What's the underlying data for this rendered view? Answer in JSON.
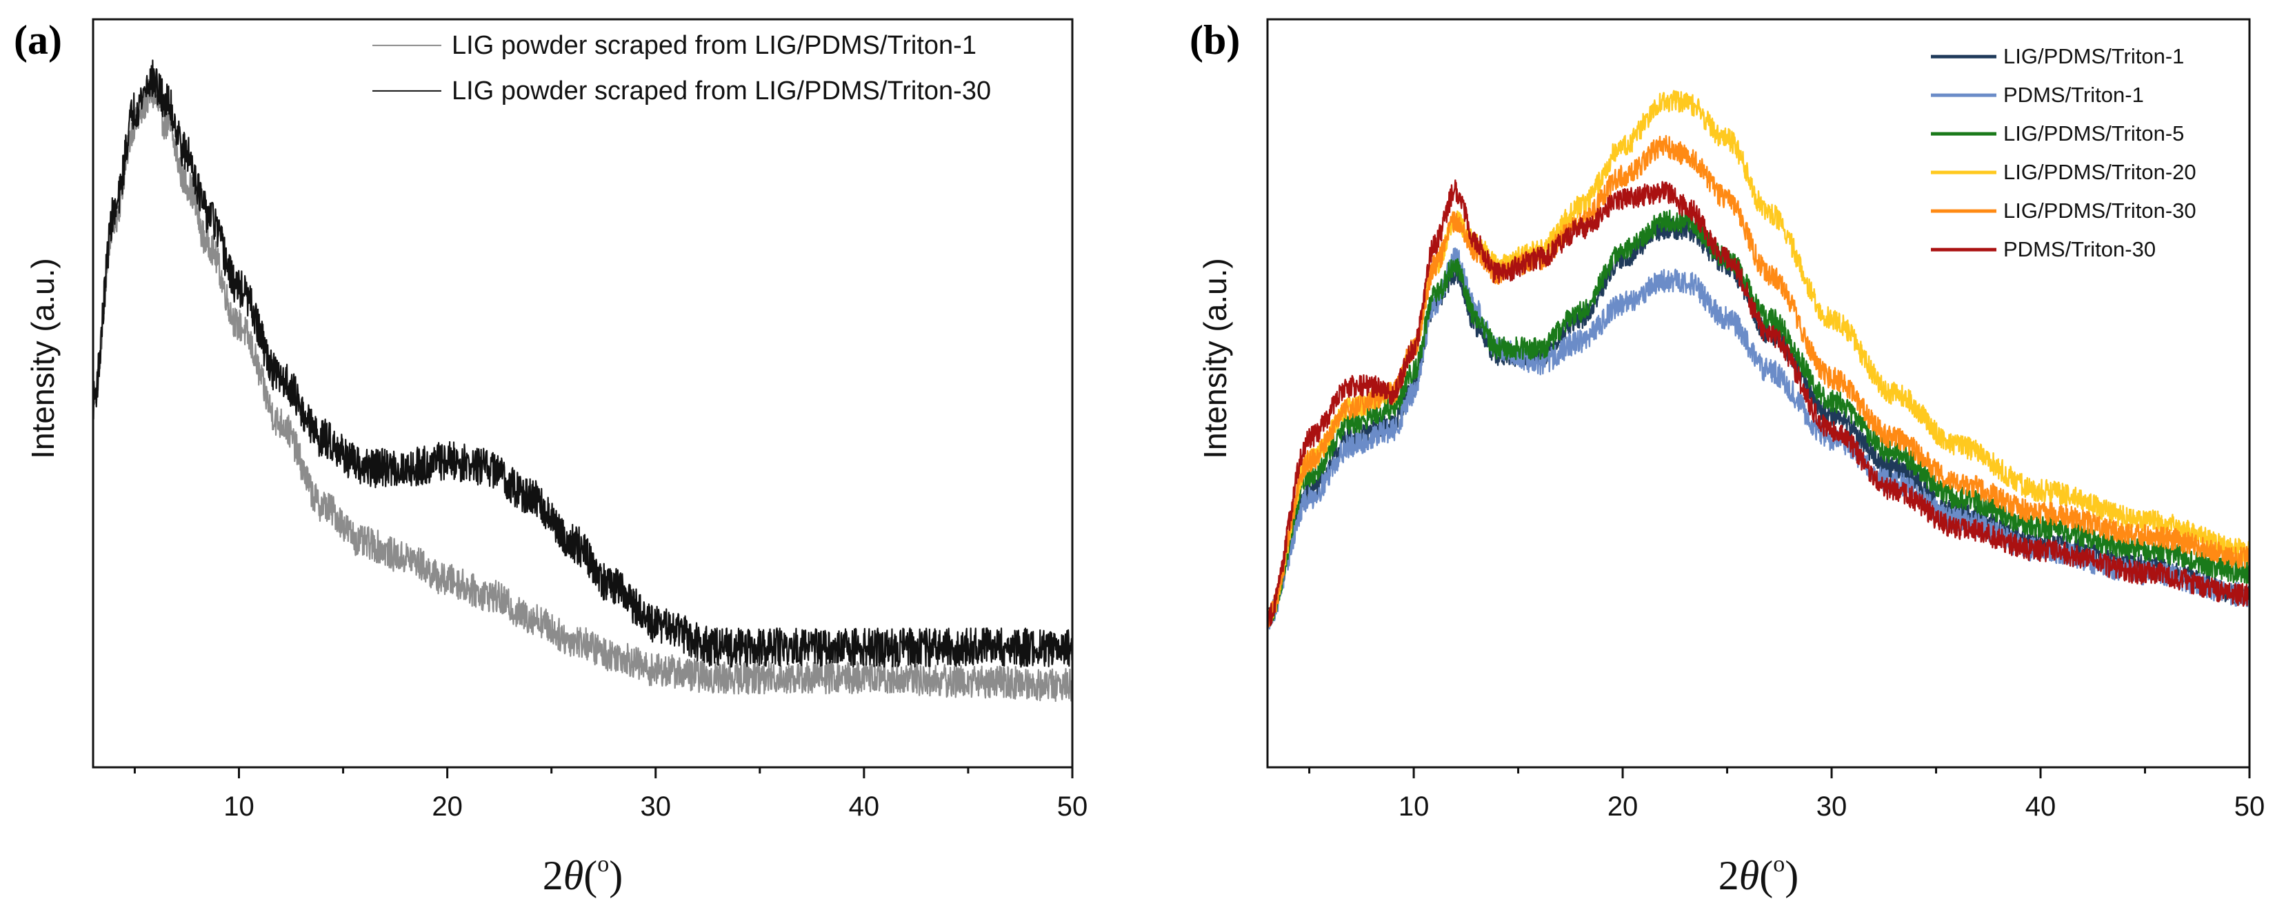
{
  "chart_data": [
    {
      "panel": "(a)",
      "type": "line",
      "xlabel": "2θ(°)",
      "xlabel_parts": {
        "prefix": "2",
        "theta": "θ",
        "open": "(",
        "degree": "o",
        "close": ")"
      },
      "ylabel": "Intensity (a.u.)",
      "xlim": [
        3,
        50
      ],
      "ylim": [
        0,
        100
      ],
      "xticks": [
        10,
        20,
        30,
        40,
        50
      ],
      "legend_position": "top-right",
      "series": [
        {
          "name": "LIG powder scraped from LIG/PDMS/Triton-1",
          "color": "#8c8c8c",
          "noise": 2.2,
          "x": [
            3,
            4,
            5,
            5.8,
            6.5,
            7.5,
            8.5,
            10,
            12,
            14,
            16,
            18,
            20,
            22,
            24,
            26,
            28,
            30,
            33,
            36,
            40,
            45,
            50
          ],
          "y": [
            49,
            73,
            86,
            90,
            86,
            78,
            70,
            59,
            46,
            35,
            30,
            28,
            25,
            23,
            20,
            17,
            15,
            13,
            12,
            12,
            12,
            11.5,
            11
          ]
        },
        {
          "name": "LIG powder scraped from LIG/PDMS/Triton-30",
          "color": "#111111",
          "noise": 2.6,
          "x": [
            3,
            4,
            5,
            5.8,
            6.5,
            7.5,
            8.5,
            10,
            12,
            14,
            16,
            18,
            20,
            22,
            24,
            26,
            28,
            30,
            33,
            36,
            40,
            45,
            50
          ],
          "y": [
            49,
            74,
            88,
            92,
            89,
            82,
            74,
            64,
            52,
            44,
            40,
            40,
            41,
            40,
            36,
            30,
            24,
            19,
            16,
            16,
            16,
            16,
            16
          ]
        }
      ]
    },
    {
      "panel": "(b)",
      "type": "line",
      "xlabel": "2θ(°)",
      "xlabel_parts": {
        "prefix": "2",
        "theta": "θ",
        "open": "(",
        "degree": "o",
        "close": ")"
      },
      "ylabel": "Intensity (a.u.)",
      "xlim": [
        3,
        50
      ],
      "ylim": [
        0,
        100
      ],
      "xticks": [
        10,
        20,
        30,
        40,
        50
      ],
      "legend_position": "top-right",
      "series": [
        {
          "name": "LIG/PDMS/Triton-1",
          "color": "#1f3a5a",
          "noise": 1.4,
          "x": [
            3,
            5,
            7,
            9,
            10,
            11,
            12,
            13,
            14,
            16,
            18,
            20,
            22,
            23,
            25,
            27,
            30,
            33,
            36,
            40,
            45,
            50
          ],
          "y": [
            20,
            37,
            44,
            46,
            51,
            62,
            66,
            59,
            55,
            55,
            60,
            68,
            72,
            72,
            67,
            58,
            47,
            40,
            34,
            30,
            27,
            23
          ]
        },
        {
          "name": "PDMS/Triton-1",
          "color": "#6b8cc8",
          "noise": 1.6,
          "x": [
            3,
            5,
            7,
            9,
            10,
            11,
            12,
            13,
            14,
            16,
            18,
            20,
            22,
            23,
            25,
            27,
            30,
            33,
            36,
            40,
            45,
            50
          ],
          "y": [
            20,
            36,
            43,
            45,
            50,
            62,
            68,
            61,
            56,
            54,
            57,
            62,
            65,
            65,
            60,
            53,
            44,
            38,
            33,
            29,
            26,
            23
          ]
        },
        {
          "name": "LIG/PDMS/Triton-5",
          "color": "#1a7a1a",
          "noise": 1.5,
          "x": [
            3,
            5,
            7,
            9,
            10,
            11,
            12,
            13,
            14,
            16,
            18,
            20,
            22,
            23,
            25,
            27,
            30,
            33,
            36,
            40,
            45,
            50
          ],
          "y": [
            20,
            39,
            46,
            48,
            53,
            63,
            67,
            60,
            56,
            56,
            61,
            69,
            73,
            73,
            68,
            60,
            49,
            42,
            36,
            32,
            29,
            26
          ]
        },
        {
          "name": "LIG/PDMS/Triton-20",
          "color": "#ffc91f",
          "noise": 1.5,
          "x": [
            3,
            5,
            7,
            9,
            10,
            11,
            12,
            13,
            14,
            16,
            18,
            20,
            22,
            23,
            25,
            27,
            30,
            33,
            36,
            40,
            45,
            50
          ],
          "y": [
            20,
            41,
            48,
            50,
            56,
            67,
            73,
            70,
            67,
            69,
            75,
            83,
            89,
            89,
            84,
            74,
            60,
            50,
            43,
            37,
            33,
            29
          ]
        },
        {
          "name": "LIG/PDMS/Triton-30",
          "color": "#ff8a14",
          "noise": 1.5,
          "x": [
            3,
            5,
            7,
            9,
            10,
            11,
            12,
            13,
            14,
            16,
            18,
            20,
            22,
            23,
            25,
            27,
            30,
            33,
            36,
            40,
            45,
            50
          ],
          "y": [
            20,
            41,
            48,
            50,
            56,
            67,
            73,
            69,
            66,
            68,
            73,
            79,
            83,
            82,
            76,
            66,
            52,
            44,
            38,
            34,
            31,
            28
          ]
        },
        {
          "name": "PDMS/Triton-30",
          "color": "#aa1111",
          "noise": 1.5,
          "x": [
            3,
            5,
            7,
            8,
            9,
            10,
            11,
            12,
            13,
            14,
            16,
            18,
            20,
            22,
            23,
            25,
            27,
            30,
            33,
            36,
            40,
            45,
            50
          ],
          "y": [
            20,
            44,
            51,
            51,
            50,
            56,
            70,
            77,
            70,
            66,
            68,
            72,
            76,
            77,
            75,
            68,
            58,
            45,
            37,
            32,
            29,
            26,
            23
          ]
        }
      ]
    }
  ]
}
